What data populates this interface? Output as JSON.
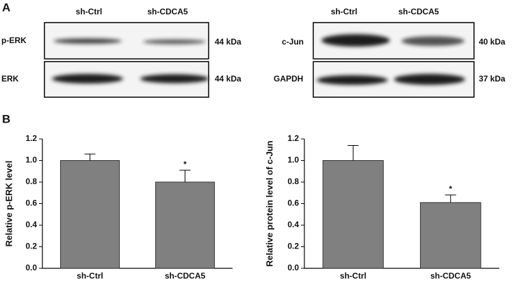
{
  "panel_labels": [
    "A",
    "B"
  ],
  "blots": [
    {
      "columns": [
        "sh-Ctrl",
        "sh-CDCA5"
      ],
      "rows": [
        {
          "label": "p-ERK",
          "size": "44 kDa"
        },
        {
          "label": "ERK",
          "size": "44 kDa"
        }
      ]
    },
    {
      "columns": [
        "sh-Ctrl",
        "sh-CDCA5"
      ],
      "rows": [
        {
          "label": "c-Jun",
          "size": "40 kDa"
        },
        {
          "label": "GAPDH",
          "size": "37 kDa"
        }
      ]
    }
  ],
  "chart_data": [
    {
      "type": "bar",
      "ylabel": "Relative  p-ERK level",
      "categories": [
        "sh-Ctrl",
        "sh-CDCA5"
      ],
      "values": [
        1.0,
        0.8
      ],
      "errors": [
        0.06,
        0.11
      ],
      "significance": [
        null,
        "*"
      ],
      "color": "#808080",
      "ylim": [
        0,
        1.2
      ],
      "yticks": [
        {
          "value": 0,
          "label": "0.0"
        },
        {
          "value": 0.2,
          "label": "0.2"
        },
        {
          "value": 0.4,
          "label": "0.4"
        },
        {
          "value": 0.6,
          "label": "0.6"
        },
        {
          "value": 0.8,
          "label": "0.8"
        },
        {
          "value": 1.0,
          "label": "1.0"
        },
        {
          "value": 1.2,
          "label": "1.2"
        }
      ]
    },
    {
      "type": "bar",
      "ylabel": "Relative protein level of c-Jun",
      "categories": [
        "sh-Ctrl",
        "sh-CDCA5"
      ],
      "values": [
        1.0,
        0.61
      ],
      "errors": [
        0.14,
        0.07
      ],
      "significance": [
        null,
        "*"
      ],
      "color": "#808080",
      "ylim": [
        0,
        1.2
      ],
      "yticks": [
        {
          "value": 0,
          "label": "0.0"
        },
        {
          "value": 0.2,
          "label": "0.2"
        },
        {
          "value": 0.4,
          "label": "0.4"
        },
        {
          "value": 0.6,
          "label": "0.6"
        },
        {
          "value": 0.8,
          "label": "0.8"
        },
        {
          "value": 1.0,
          "label": "1.0"
        },
        {
          "value": 1.2,
          "label": "1.2"
        }
      ]
    }
  ]
}
